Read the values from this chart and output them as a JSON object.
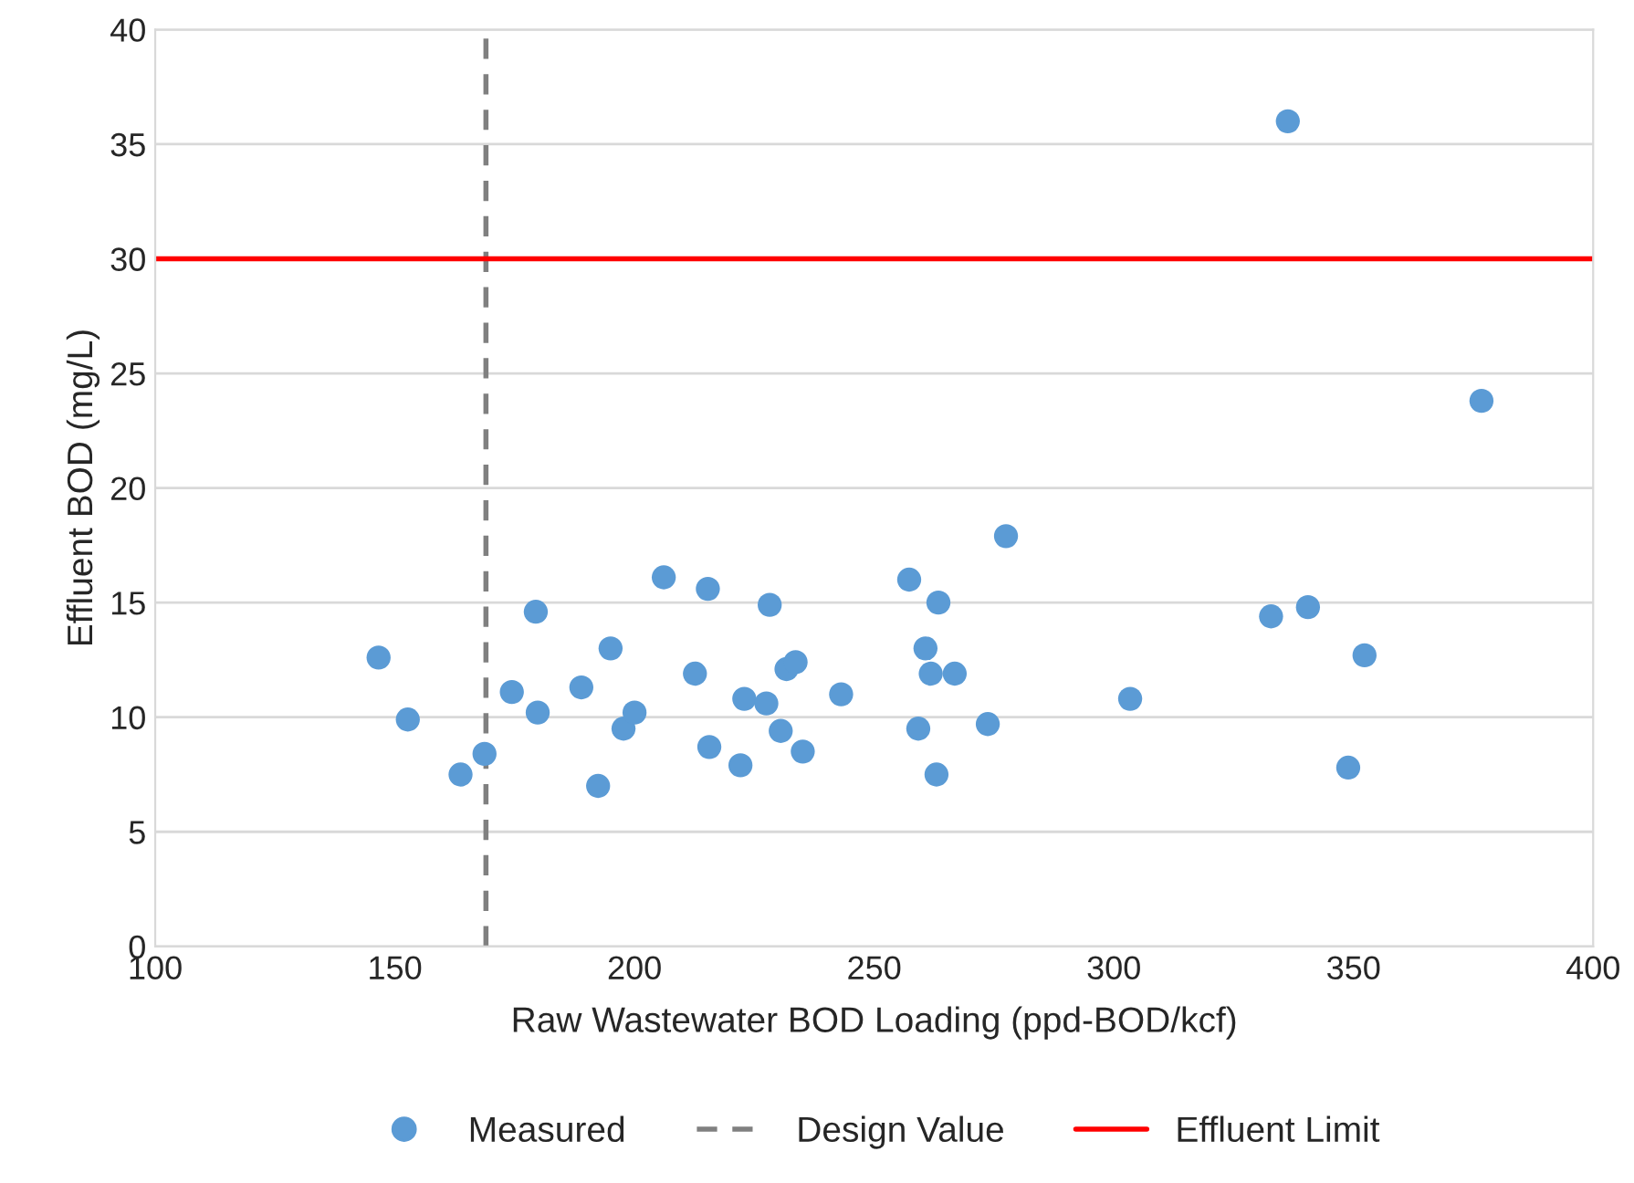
{
  "chart_data": {
    "type": "scatter",
    "xlabel": "Raw Wastewater BOD Loading (ppd-BOD/kcf)",
    "ylabel": "Effluent BOD (mg/L)",
    "xlim": [
      100,
      400
    ],
    "xticks": [
      100,
      150,
      200,
      250,
      300,
      350,
      400
    ],
    "ylim": [
      0,
      40
    ],
    "yticks": [
      0,
      5,
      10,
      15,
      20,
      25,
      30,
      35,
      40
    ],
    "grid": "y",
    "legend": "bottom",
    "marker": "circle",
    "series": [
      {
        "name": "Measured",
        "color": "#5b9bd5",
        "x": [
          146.6,
          152.7,
          163.7,
          168.7,
          174.4,
          179.4,
          179.8,
          188.9,
          192.4,
          195.0,
          197.7,
          200.0,
          206.1,
          212.6,
          215.3,
          215.6,
          222.1,
          222.9,
          227.5,
          228.2,
          230.5,
          231.7,
          233.6,
          235.1,
          243.1,
          257.3,
          259.2,
          260.7,
          261.8,
          263.4,
          263.0,
          266.8,
          273.7,
          277.5,
          303.4,
          332.8,
          336.3,
          340.5,
          348.9,
          352.3,
          376.7
        ],
        "values": [
          12.6,
          9.9,
          7.5,
          8.4,
          11.1,
          14.6,
          10.2,
          11.3,
          7.0,
          13.0,
          9.5,
          10.2,
          16.1,
          11.9,
          15.6,
          8.7,
          7.9,
          10.8,
          10.6,
          14.9,
          9.4,
          12.1,
          12.4,
          8.5,
          11.0,
          16.0,
          9.5,
          13.0,
          11.9,
          15.0,
          7.5,
          11.9,
          9.7,
          17.9,
          10.8,
          14.4,
          36.0,
          14.8,
          7.8,
          12.7,
          23.8
        ]
      }
    ],
    "ref_lines": [
      {
        "axis": "x",
        "value": 169,
        "label": "Design Value",
        "color": "#808080",
        "line_style": "dashed"
      },
      {
        "axis": "y",
        "value": 30,
        "label": "Effluent Limit",
        "color": "#ff0000",
        "line_style": "solid"
      }
    ]
  }
}
